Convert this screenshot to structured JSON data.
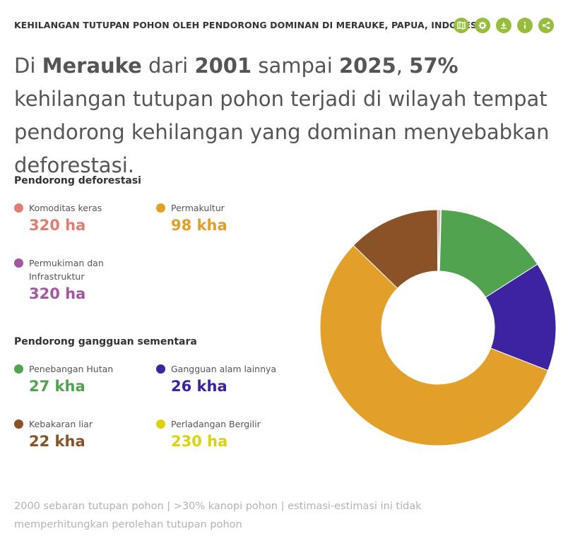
{
  "header": {
    "title": "KEHILANGAN TUTUPAN POHON OLEH PENDORONG DOMINAN DI MERAUKE, PAPUA, INDONESIA",
    "tools": [
      {
        "name": "map-icon",
        "label": "map"
      },
      {
        "name": "settings-icon",
        "label": "settings"
      },
      {
        "name": "download-icon",
        "label": "download"
      },
      {
        "name": "info-icon",
        "label": "info"
      },
      {
        "name": "share-icon",
        "label": "share"
      }
    ],
    "tool_color": "#97bd3d"
  },
  "headline": {
    "p1": "Di ",
    "place": "Merauke",
    "p2": " dari ",
    "year_start": "2001",
    "p3": " sampai ",
    "year_end": "2025",
    "p4": ", ",
    "percent": "57%",
    "p5": " kehilangan tutupan pohon terjadi di wilayah tempat pendorong kehilangan yang dominan menyebabkan deforestasi."
  },
  "deforestation_section": {
    "title": "Pendorong deforestasi",
    "items": [
      {
        "label": "Komoditas keras",
        "value": "320 ha",
        "color": "#e07e72"
      },
      {
        "label": "Permakultur",
        "value": "98 kha",
        "color": "#e29f2a"
      },
      {
        "label": "Permukiman dan Infrastruktur",
        "value": "320 ha",
        "color": "#a456a0"
      }
    ]
  },
  "disturbance_section": {
    "title": "Pendorong gangguan sementara",
    "items": [
      {
        "label": "Penebangan Hutan",
        "value": "27 kha",
        "color": "#51a350"
      },
      {
        "label": "Gangguan alam lainnya",
        "value": "26 kha",
        "color": "#3d239f"
      },
      {
        "label": "Kebakaran liar",
        "value": "22 kha",
        "color": "#8a5227"
      },
      {
        "label": "Perladangan Bergilir",
        "value": "230 ha",
        "color": "#dcd20f"
      }
    ]
  },
  "chart_data": {
    "type": "pie",
    "donut": true,
    "unit": "kha",
    "slices": [
      {
        "name": "Perladangan Bergilir",
        "value": 0.23,
        "color": "#dcd20f"
      },
      {
        "name": "Penebangan Hutan",
        "value": 27,
        "color": "#51a350"
      },
      {
        "name": "Gangguan alam lainnya",
        "value": 26,
        "color": "#3d239f"
      },
      {
        "name": "Permakultur",
        "value": 98,
        "color": "#e29f2a"
      },
      {
        "name": "Kebakaran liar",
        "value": 22,
        "color": "#8a5227"
      },
      {
        "name": "Komoditas keras",
        "value": 0.32,
        "color": "#e07e72"
      },
      {
        "name": "Permukiman dan Infrastruktur",
        "value": 0.32,
        "color": "#a456a0"
      }
    ]
  },
  "footnote": "2000 sebaran tutupan pohon | >30% kanopi pohon | estimasi-estimasi ini tidak memperhitungkan perolehan tutupan pohon"
}
